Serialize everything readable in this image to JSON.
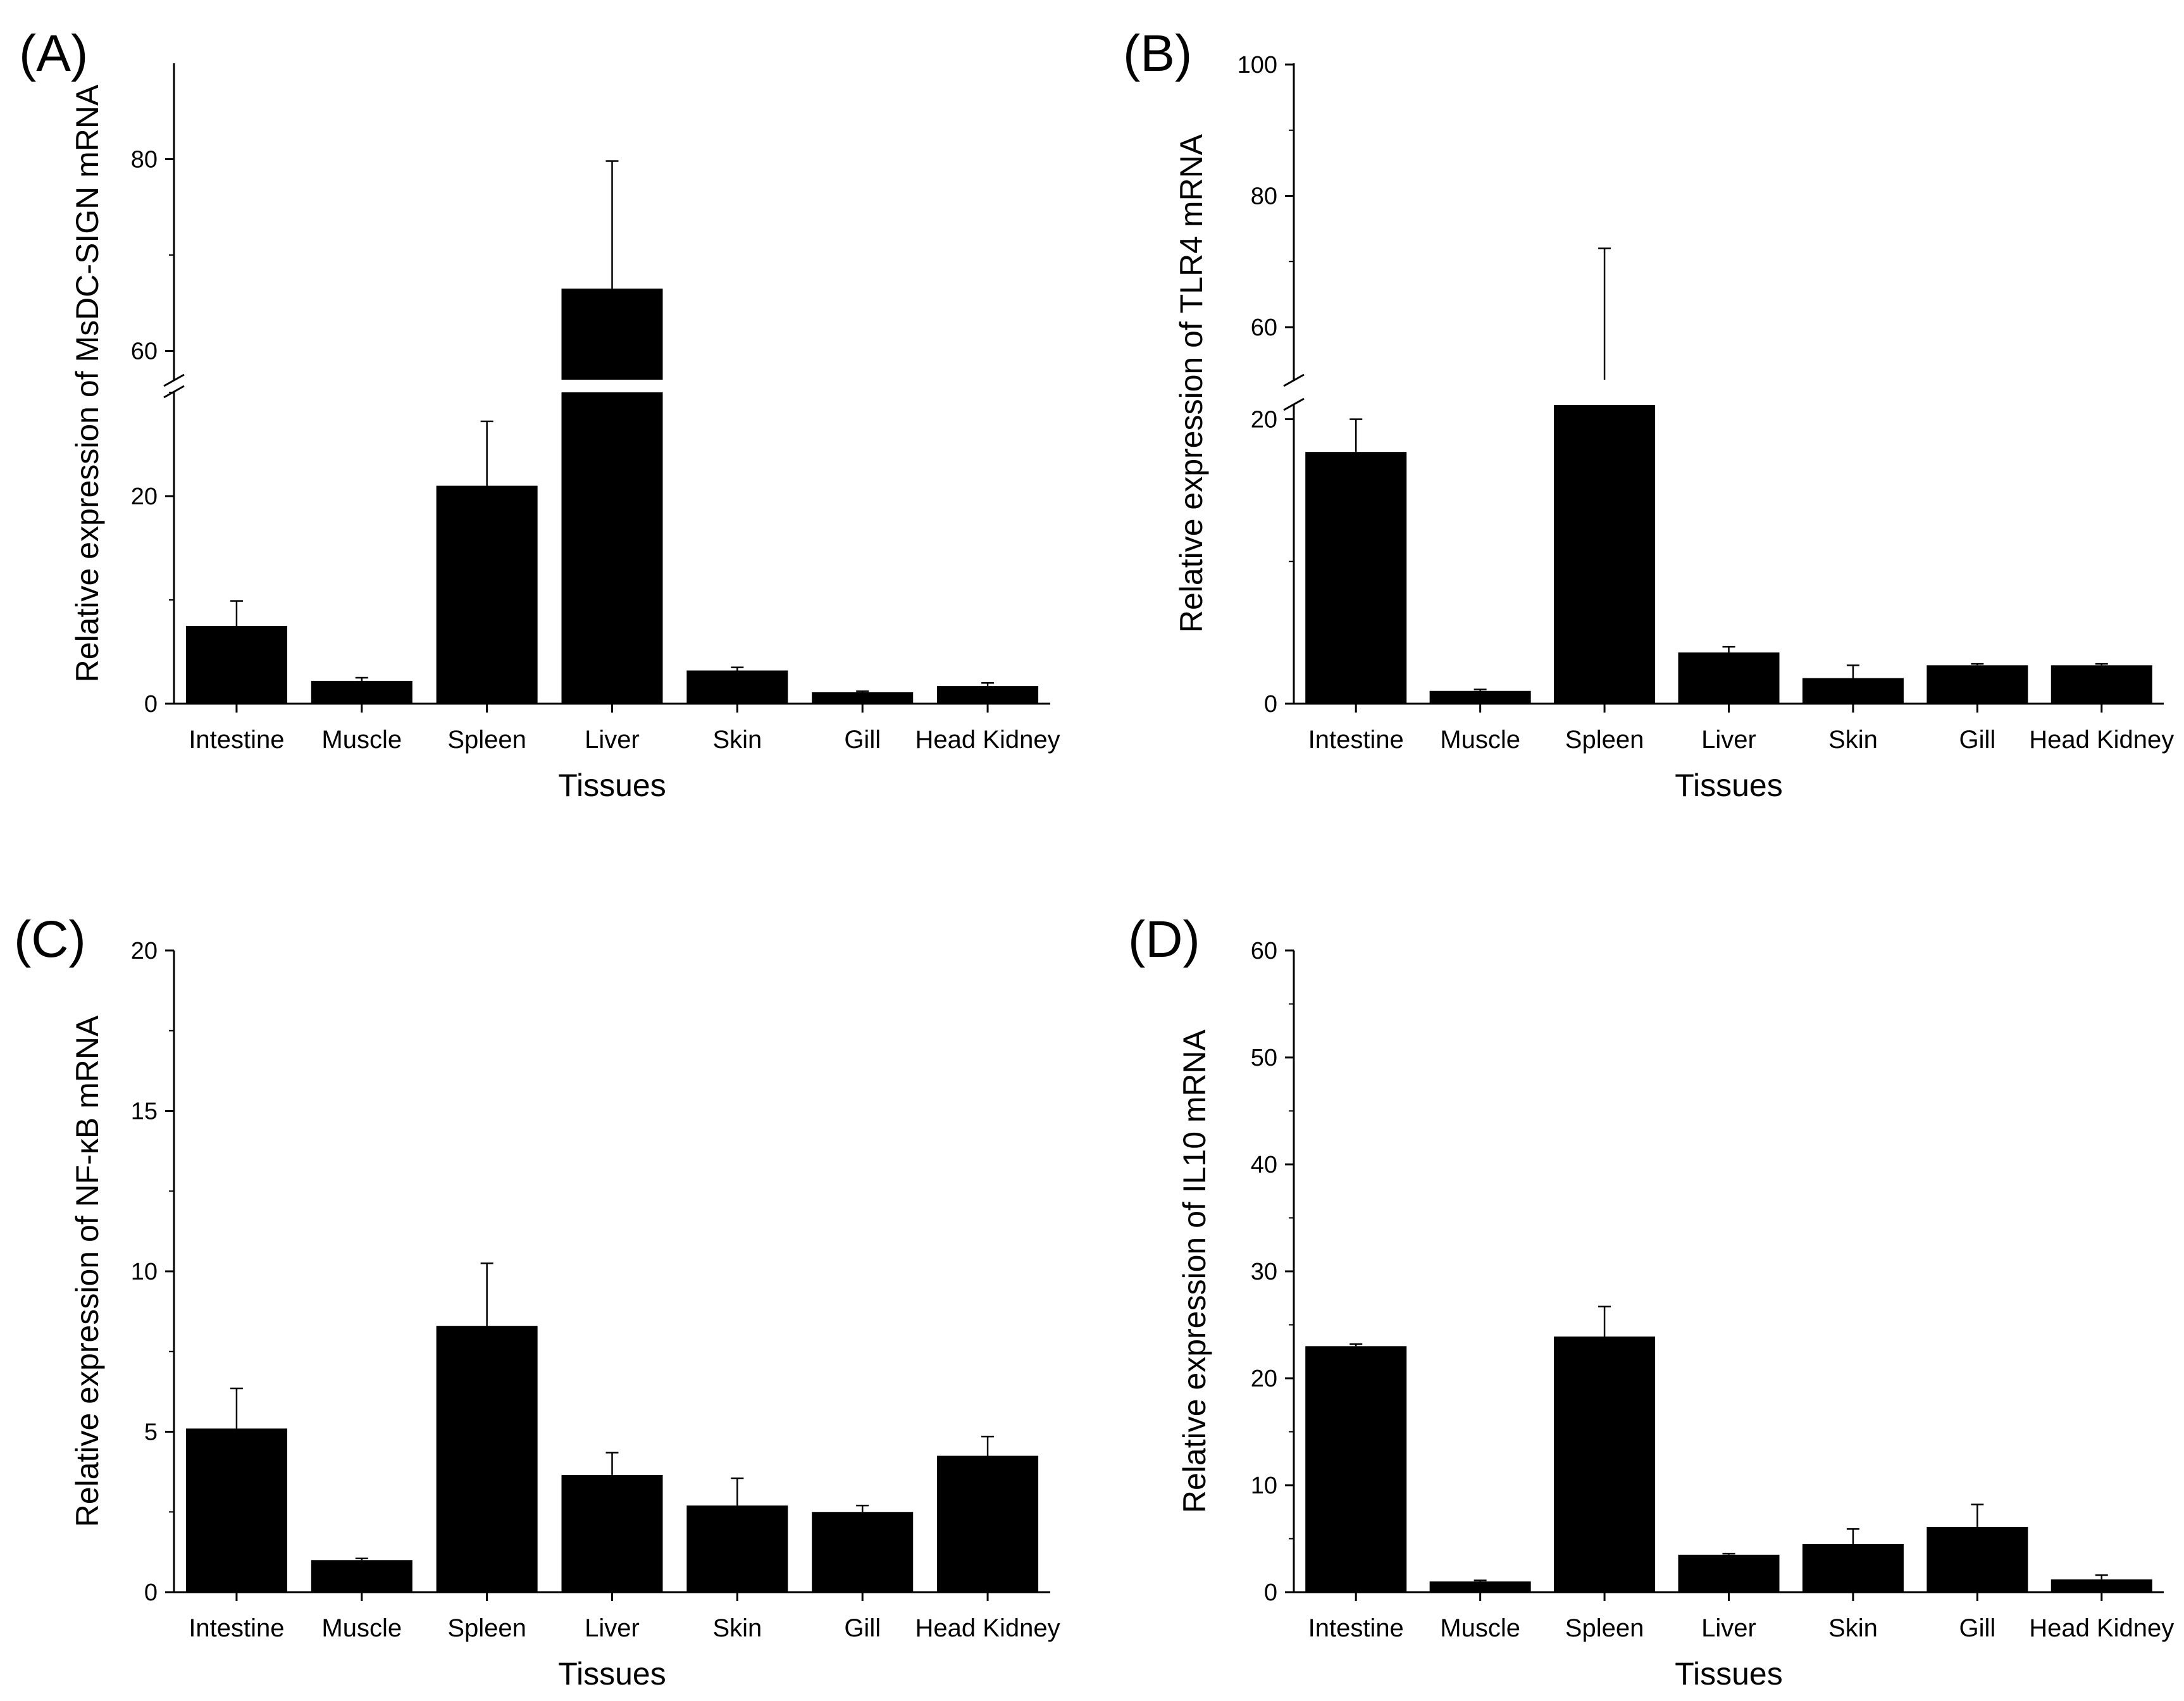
{
  "chart_data": [
    {
      "panel": "(A)",
      "type": "bar",
      "categories": [
        "Intestine",
        "Muscle",
        "Spleen",
        "Liver",
        "Skin",
        "Gill",
        "Head Kidney"
      ],
      "values": [
        7.5,
        2.2,
        21,
        66.5,
        3.2,
        1.1,
        1.7
      ],
      "errors": [
        2.4,
        0.3,
        6.2,
        13.3,
        0.3,
        0.1,
        0.3
      ],
      "xlabel": "Tissues",
      "ylabel": "Relative expression of MsDC-SIGN mRNA",
      "axis_break": {
        "lower": [
          0,
          30
        ],
        "upper": [
          57,
          90
        ]
      },
      "yticks_lower": [
        0,
        20
      ],
      "yticks_upper": [
        60,
        80
      ]
    },
    {
      "panel": "(B)",
      "type": "bar",
      "categories": [
        "Intestine",
        "Muscle",
        "Spleen",
        "Liver",
        "Skin",
        "Gill",
        "Head Kidney"
      ],
      "values": [
        17.7,
        0.9,
        52,
        3.6,
        1.8,
        2.7,
        2.7
      ],
      "errors": [
        2.3,
        0.1,
        20,
        0.4,
        0.9,
        0.1,
        0.1
      ],
      "xlabel": "Tissues",
      "ylabel": "Relative expression of TLR4 mRNA",
      "axis_break": {
        "lower": [
          0,
          21
        ],
        "upper": [
          52,
          100
        ]
      },
      "yticks_lower": [
        0,
        20
      ],
      "yticks_upper": [
        60,
        80,
        100
      ]
    },
    {
      "panel": "(C)",
      "type": "bar",
      "categories": [
        "Intestine",
        "Muscle",
        "Spleen",
        "Liver",
        "Skin",
        "Gill",
        "Head Kidney"
      ],
      "values": [
        5.1,
        1.0,
        8.3,
        3.65,
        2.7,
        2.5,
        4.25
      ],
      "errors": [
        1.25,
        0.05,
        1.95,
        0.7,
        0.85,
        0.2,
        0.6
      ],
      "xlabel": "Tissues",
      "ylabel": "Relative expression of NF-κB mRNA",
      "ylim": [
        0,
        20
      ],
      "yticks": [
        0,
        5,
        10,
        15,
        20
      ]
    },
    {
      "panel": "(D)",
      "type": "bar",
      "categories": [
        "Intestine",
        "Muscle",
        "Spleen",
        "Liver",
        "Skin",
        "Gill",
        "Head Kidney"
      ],
      "values": [
        23,
        1.0,
        23.9,
        3.5,
        4.5,
        6.1,
        1.2
      ],
      "errors": [
        0.2,
        0.1,
        2.8,
        0.1,
        1.4,
        2.1,
        0.4
      ],
      "xlabel": "Tissues",
      "ylabel": "Relative expression of IL10 mRNA",
      "ylim": [
        0,
        60
      ],
      "yticks": [
        0,
        10,
        20,
        30,
        40,
        50,
        60
      ]
    }
  ]
}
